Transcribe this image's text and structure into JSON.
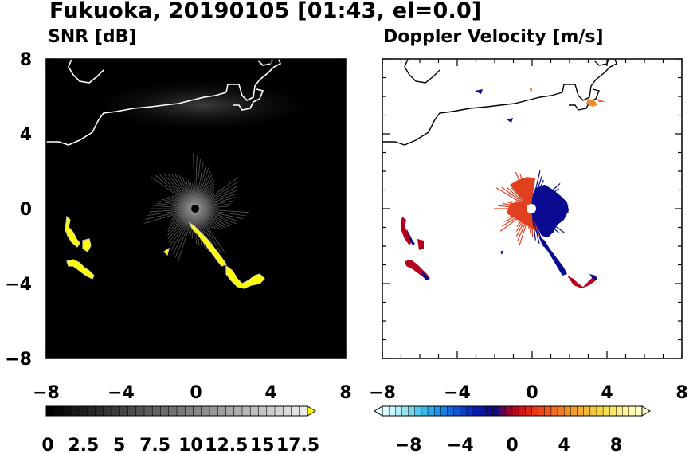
{
  "title": "Fukuoka, 20190105 [01:43, el=0.0]",
  "chart_data": [
    {
      "type": "heatmap",
      "title": "SNR [dB]",
      "xlim": [
        -8,
        8
      ],
      "ylim": [
        -8,
        8
      ],
      "xticks": [
        -8,
        -4,
        0,
        4,
        8
      ],
      "yticks": [
        -8,
        -4,
        0,
        4,
        8
      ],
      "background": "#000000",
      "coastline_color": "#ffffff",
      "colorbar": {
        "min": 0,
        "max": 17.5,
        "tick_values": [
          0,
          2.5,
          5,
          7.5,
          10,
          12.5,
          15,
          17.5
        ],
        "tick_labels": [
          "0",
          "2.5",
          "5",
          "7.5",
          "10",
          "12.5",
          "15",
          "17.5"
        ],
        "colors": [
          "#000000",
          "#303030",
          "#606060",
          "#8c8c8c",
          "#b4b4b4",
          "#dcdcdc",
          "#f0f0f0",
          "#ffff00"
        ],
        "extend": "max"
      },
      "echo_color": "#ffff00"
    },
    {
      "type": "heatmap",
      "title": "Doppler Velocity [m/s]",
      "xlim": [
        -8,
        8
      ],
      "ylim": [
        -8,
        8
      ],
      "xticks": [
        -8,
        -4,
        0,
        4,
        8
      ],
      "yticks": [
        -8,
        -4,
        0,
        4,
        8
      ],
      "background": "#ffffff",
      "coastline_color": "#000000",
      "colorbar": {
        "min": -10,
        "max": 10,
        "tick_values": [
          -8,
          -4,
          0,
          4,
          8
        ],
        "tick_labels": [
          "−8",
          "−4",
          "0",
          "4",
          "8"
        ],
        "colors": [
          "#e0ffff",
          "#9ee6f0",
          "#40c0ea",
          "#1e8ce6",
          "#0f4fd0",
          "#0a1ab0",
          "#0a0a80",
          "#b4001e",
          "#e62814",
          "#f05a1e",
          "#f08c28",
          "#f0b432",
          "#f5dc46",
          "#fff08c",
          "#ffffc8"
        ],
        "extend": "both"
      },
      "approach_color": "#0a0a90",
      "recede_color": "#e04020"
    }
  ],
  "xtick_labels": [
    "−8",
    "−4",
    "0",
    "4",
    "8"
  ],
  "ytick_labels": [
    "8",
    "4",
    "0",
    "−4",
    "−8"
  ]
}
